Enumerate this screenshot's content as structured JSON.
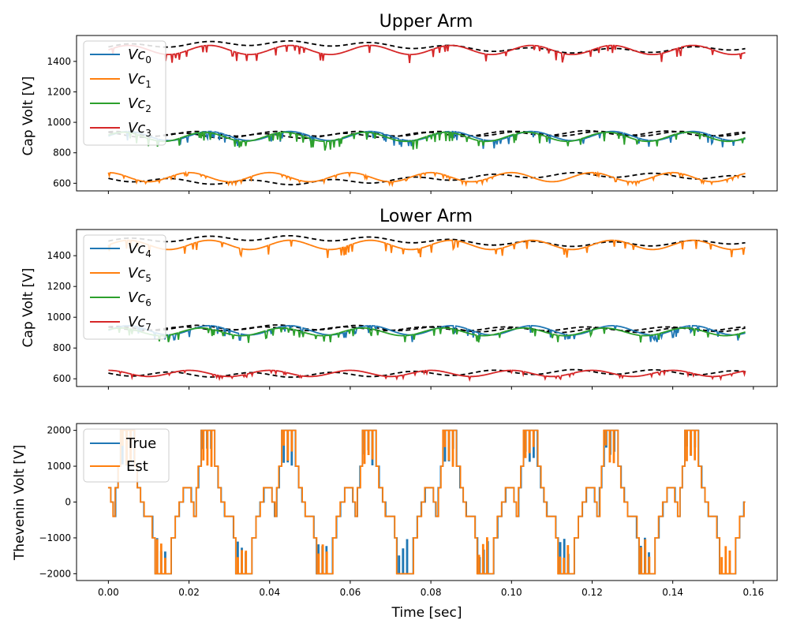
{
  "chart_data": [
    {
      "type": "line",
      "title": "Upper Arm",
      "ylabel": "Cap Volt [V]",
      "xlabel": "",
      "xlim": [
        -0.0079,
        0.1659
      ],
      "ylim": [
        550,
        1570
      ],
      "yticks": [
        600,
        800,
        1000,
        1200,
        1400
      ],
      "yticks_label": [
        "600",
        "800",
        "1000",
        "1200",
        "1400"
      ],
      "show_xticklabels": false,
      "legend_position": "upper-left",
      "grid": false,
      "x_range": [
        0,
        0.158
      ],
      "series": [
        {
          "name": "Vc",
          "subscript": "0",
          "color": "#1f77b4",
          "base": 910,
          "amp": 30,
          "phase": 0.0,
          "spike": 55
        },
        {
          "name": "Vc",
          "subscript": "1",
          "color": "#ff7f0e",
          "base": 640,
          "amp": 30,
          "phase": 1.57,
          "spike": 20
        },
        {
          "name": "Vc",
          "subscript": "2",
          "color": "#2ca02c",
          "base": 905,
          "amp": 30,
          "phase": 0.4,
          "spike": 55
        },
        {
          "name": "Vc",
          "subscript": "3",
          "color": "#d62728",
          "base": 1475,
          "amp": 30,
          "phase": 0.0,
          "spike": 55
        }
      ],
      "estimates": [
        {
          "color": "#000000",
          "base": 1495,
          "amp": 15,
          "drift": 25
        },
        {
          "color": "#000000",
          "base": 925,
          "amp": 15,
          "drift": 0
        },
        {
          "color": "#000000",
          "base": 920,
          "amp": 15,
          "drift": -10
        },
        {
          "color": "#000000",
          "base": 630,
          "amp": 15,
          "drift": -25
        }
      ]
    },
    {
      "type": "line",
      "title": "Lower Arm",
      "ylabel": "Cap Volt [V]",
      "xlabel": "",
      "xlim": [
        -0.0079,
        0.1659
      ],
      "ylim": [
        550,
        1570
      ],
      "yticks": [
        600,
        800,
        1000,
        1200,
        1400
      ],
      "yticks_label": [
        "600",
        "800",
        "1000",
        "1200",
        "1400"
      ],
      "show_xticklabels": false,
      "legend_position": "upper-left",
      "grid": false,
      "x_range": [
        0,
        0.158
      ],
      "series": [
        {
          "name": "Vc",
          "subscript": "4",
          "color": "#1f77b4",
          "base": 915,
          "amp": 30,
          "phase": 0.0,
          "spike": 45
        },
        {
          "name": "Vc",
          "subscript": "5",
          "color": "#ff7f0e",
          "base": 1470,
          "amp": 30,
          "phase": 0.0,
          "spike": 55
        },
        {
          "name": "Vc",
          "subscript": "6",
          "color": "#2ca02c",
          "base": 905,
          "amp": 25,
          "phase": 0.6,
          "spike": 45
        },
        {
          "name": "Vc",
          "subscript": "7",
          "color": "#d62728",
          "base": 635,
          "amp": 20,
          "phase": 1.57,
          "spike": 20
        }
      ],
      "estimates": [
        {
          "color": "#000000",
          "base": 1495,
          "amp": 15,
          "drift": 20
        },
        {
          "color": "#000000",
          "base": 925,
          "amp": 15,
          "drift": 10
        },
        {
          "color": "#000000",
          "base": 925,
          "amp": 12,
          "drift": 0
        },
        {
          "color": "#000000",
          "base": 635,
          "amp": 15,
          "drift": -10
        }
      ]
    },
    {
      "type": "line",
      "title": "",
      "ylabel": "Thevenin Volt [V]",
      "xlabel": "Time [sec]",
      "xlim": [
        -0.0079,
        0.1659
      ],
      "ylim": [
        -2190,
        2190
      ],
      "yticks": [
        -2000,
        -1000,
        0,
        1000,
        2000
      ],
      "yticks_label": [
        "−2000",
        "−1000",
        "0",
        "1000",
        "2000"
      ],
      "xticks": [
        0.0,
        0.02,
        0.04,
        0.06,
        0.08,
        0.1,
        0.12,
        0.14,
        0.16
      ],
      "xticks_label": [
        "0.00",
        "0.02",
        "0.04",
        "0.06",
        "0.08",
        "0.10",
        "0.12",
        "0.14",
        "0.16"
      ],
      "show_xticklabels": true,
      "legend_position": "upper-left",
      "grid": false,
      "x_range": [
        0,
        0.158
      ],
      "period": 0.02,
      "levels": [
        2000,
        1000,
        400,
        0,
        -400,
        -1000,
        -2000
      ],
      "series": [
        {
          "name": "True",
          "color": "#1f77b4"
        },
        {
          "name": "Est",
          "color": "#ff7f0e"
        }
      ]
    }
  ]
}
